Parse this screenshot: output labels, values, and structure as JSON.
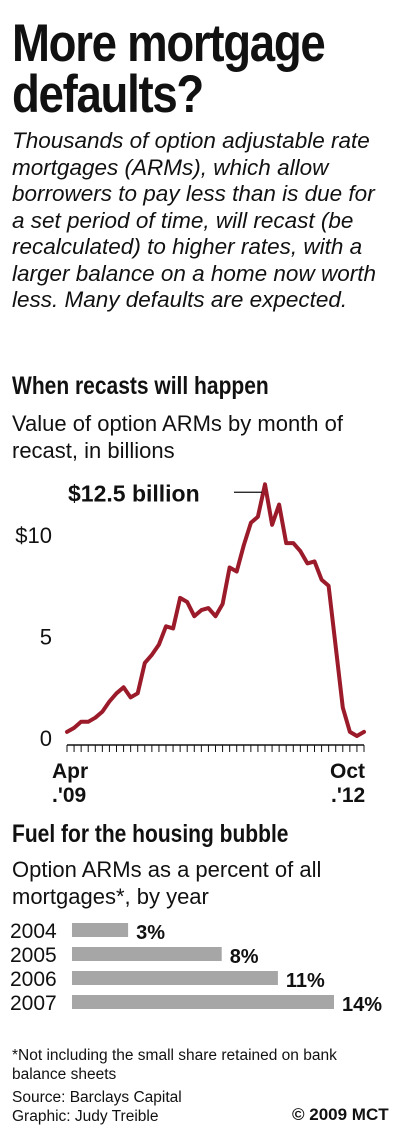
{
  "headline": [
    "More mortgage",
    "defaults?"
  ],
  "intro": "Thousands of option adjustable rate mortgages (ARMs), which allow borrowers to pay less than is due for a set period of time, will recast (be recalculated) to higher rates, with a larger balance on a home now worth less. Many defaults are expected.",
  "section1": {
    "title": "When recasts will happen",
    "subtitle": "Value of option ARMs by month of recast, in billions"
  },
  "section2": {
    "title": "Fuel for the housing bubble",
    "subtitle": "Option ARMs as a percent of all mortgages*, by year"
  },
  "footnote": "*Not including the small share retained on bank balance sheets",
  "source": "Source: Barclays Capital",
  "graphic": "Graphic: Judy Treible",
  "copyright": "© 2009 MCT",
  "colors": {
    "line": "#9b1b2a",
    "bar": "#a6a6a6",
    "text": "#111111"
  },
  "chart_data": [
    {
      "type": "line",
      "title": "When recasts will happen",
      "ylabel": "Value of option ARMs by month of recast, in billions",
      "ylim": [
        0,
        12.5
      ],
      "yticks": [
        {
          "v": 10,
          "label": "$10"
        },
        {
          "v": 5,
          "label": "5"
        },
        {
          "v": 0,
          "label": "0"
        }
      ],
      "x_start_label": [
        "Apr",
        ".'09"
      ],
      "x_end_label": [
        "Oct",
        ".'12"
      ],
      "annotation": "$12.5 billion",
      "series": [
        {
          "values": [
            0.3,
            0.5,
            0.8,
            0.8,
            1.0,
            1.3,
            1.8,
            2.2,
            2.5,
            2.0,
            2.2,
            3.7,
            4.1,
            4.6,
            5.5,
            5.4,
            6.9,
            6.7,
            6.0,
            6.3,
            6.4,
            6.0,
            6.6,
            8.4,
            8.2,
            9.5,
            10.6,
            10.9,
            12.5,
            10.5,
            11.5,
            9.6,
            9.6,
            9.2,
            8.6,
            8.7,
            7.8,
            7.5,
            4.5,
            1.5,
            0.3,
            0.1,
            0.3
          ]
        }
      ]
    },
    {
      "type": "bar",
      "title": "Fuel for the housing bubble",
      "categories": [
        "2004",
        "2005",
        "2006",
        "2007"
      ],
      "values": [
        3,
        8,
        11,
        14
      ],
      "value_labels": [
        "3%",
        "8%",
        "11%",
        "14%"
      ]
    }
  ]
}
